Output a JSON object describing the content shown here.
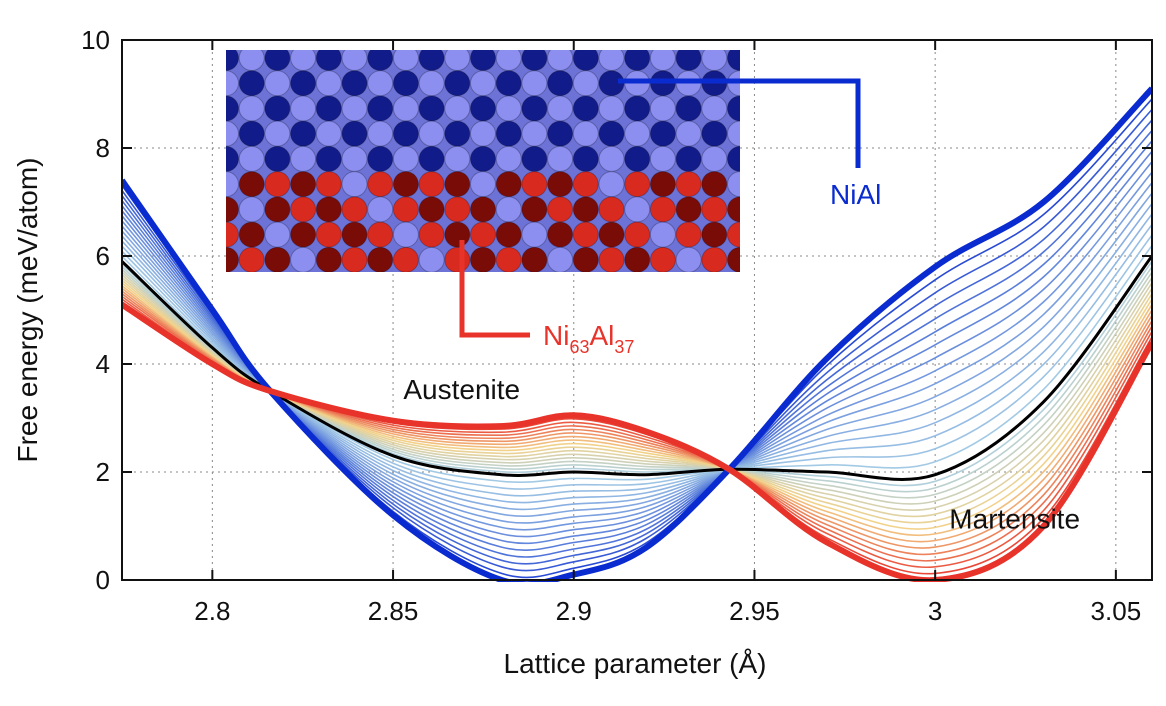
{
  "chart_data": {
    "type": "line",
    "title": "",
    "xlabel": "Lattice parameter (Å)",
    "ylabel": "Free energy (meV/atom)",
    "xlim": [
      2.775,
      3.06
    ],
    "ylim": [
      0,
      10
    ],
    "xticks": [
      "2.8",
      "2.85",
      "2.9",
      "2.95",
      "3",
      "3.05"
    ],
    "yticks": [
      "0",
      "2",
      "4",
      "6",
      "8",
      "10"
    ],
    "grid": true,
    "series": [
      {
        "role": "NiAl (blue, upper end of family)",
        "color": "#0a2bd0",
        "x": [
          2.775,
          2.8,
          2.816,
          2.85,
          2.88,
          2.9,
          2.92,
          2.943,
          2.97,
          3.0,
          3.03,
          3.06
        ],
        "y": [
          7.4,
          5.0,
          3.5,
          1.2,
          0.0,
          0.1,
          0.6,
          2.05,
          4.1,
          5.8,
          7.0,
          9.1
        ]
      },
      {
        "role": "Intermediate composition (black)",
        "color": "#000000",
        "x": [
          2.775,
          2.8,
          2.816,
          2.85,
          2.88,
          2.9,
          2.92,
          2.943,
          2.97,
          3.0,
          3.03,
          3.06
        ],
        "y": [
          5.9,
          4.3,
          3.5,
          2.3,
          1.95,
          2.0,
          1.95,
          2.05,
          2.0,
          1.95,
          3.3,
          6.0
        ]
      },
      {
        "role": "Ni63Al37 (red, lower end of family)",
        "color": "#e8332b",
        "x": [
          2.775,
          2.8,
          2.816,
          2.85,
          2.88,
          2.9,
          2.92,
          2.943,
          2.97,
          3.0,
          3.03,
          3.06
        ],
        "y": [
          5.1,
          4.0,
          3.5,
          2.95,
          2.85,
          3.05,
          2.75,
          2.05,
          0.7,
          0.0,
          1.0,
          4.4
        ]
      }
    ],
    "family_count": 32,
    "annotations": [
      {
        "text": "Austenite",
        "x": 2.869,
        "y": 3.35,
        "color": "#111111"
      },
      {
        "text": "Martensite",
        "x": 3.022,
        "y": 0.95,
        "color": "#111111"
      }
    ],
    "labels": {
      "blue": {
        "text": "NiAl",
        "color": "#0a2bd0"
      },
      "red": {
        "base1": "Ni",
        "sub1": "63",
        "base2": "Al",
        "sub2": "37",
        "color": "#e8332b"
      }
    },
    "inset": {
      "image": "atomic-lattice-rendering",
      "cols": 21,
      "rows": 9,
      "red_rows_start": 5,
      "colors": {
        "light": "#8c8ff0",
        "dark": "#111c8a",
        "red": "#d92a1f",
        "red_dark": "#7a0c08"
      }
    }
  }
}
